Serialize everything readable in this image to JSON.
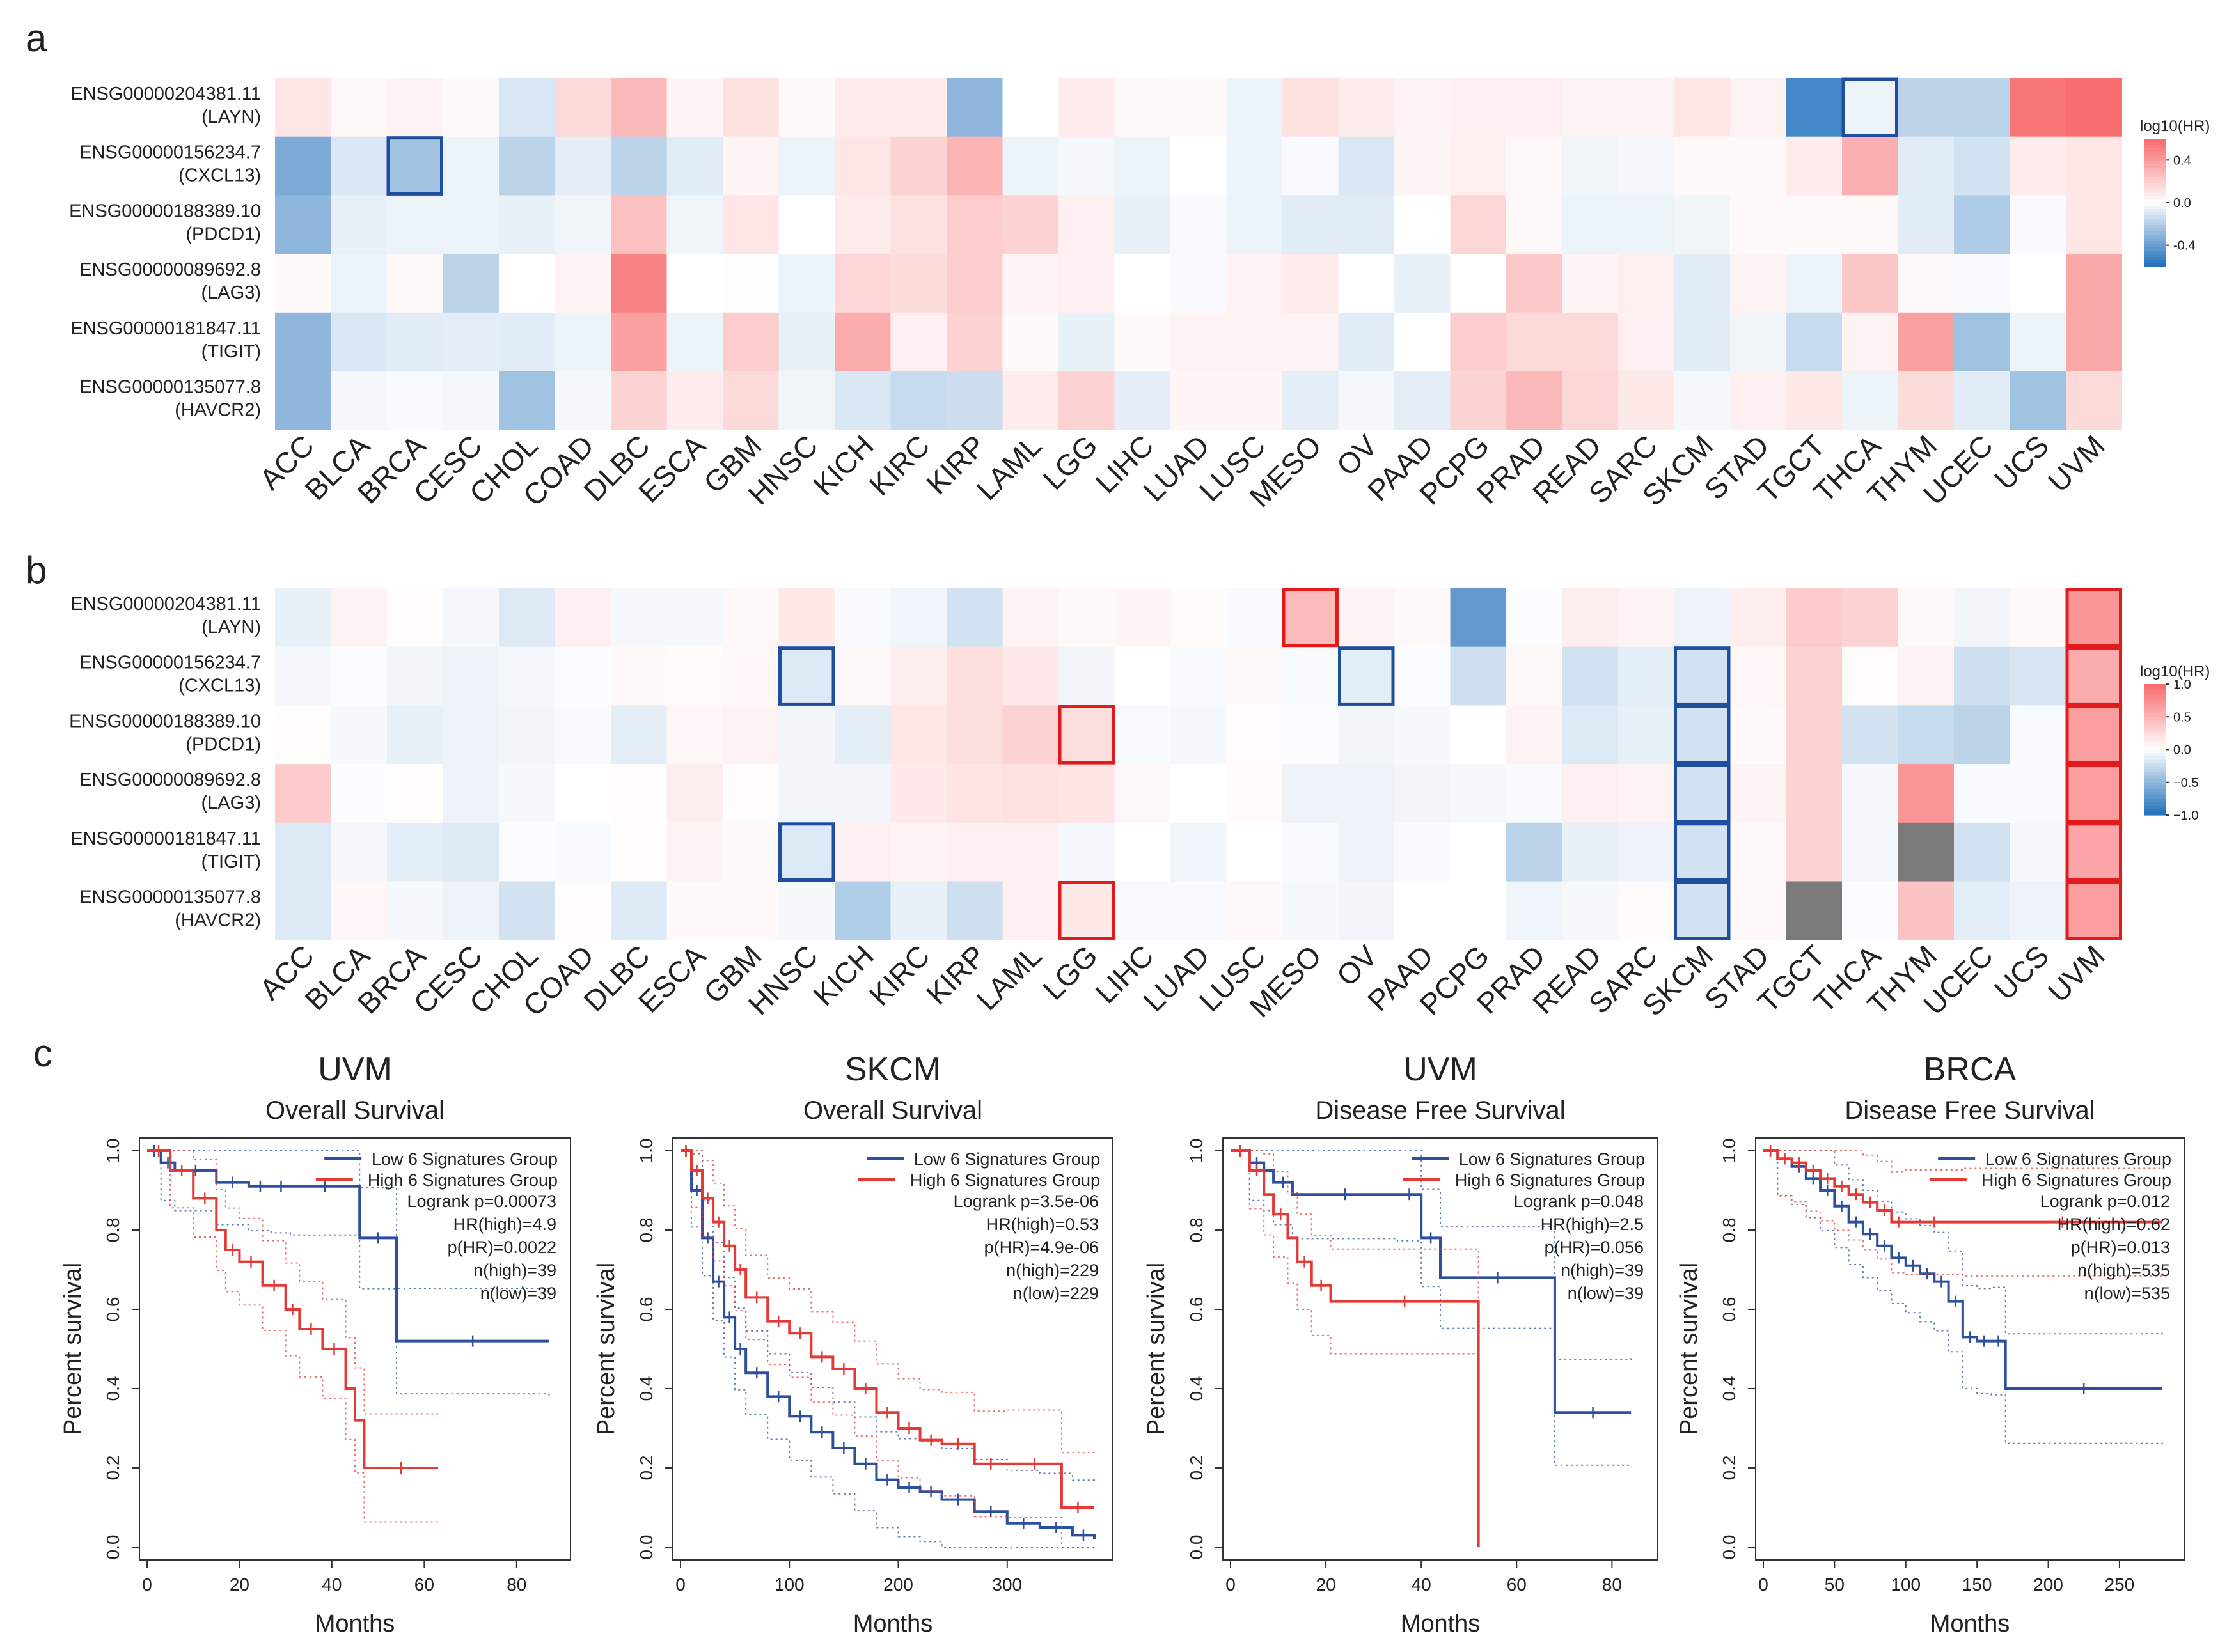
{
  "panels": {
    "a": {
      "label": "a"
    },
    "b": {
      "label": "b"
    },
    "c": {
      "label": "c"
    }
  },
  "cancers": [
    "ACC",
    "BLCA",
    "BRCA",
    "CESC",
    "CHOL",
    "COAD",
    "DLBC",
    "ESCA",
    "GBM",
    "HNSC",
    "KICH",
    "KIRC",
    "KIRP",
    "LAML",
    "LGG",
    "LIHC",
    "LUAD",
    "LUSC",
    "MESO",
    "OV",
    "PAAD",
    "PCPG",
    "PRAD",
    "READ",
    "SARC",
    "SKCM",
    "STAD",
    "TGCT",
    "THCA",
    "THYM",
    "UCEC",
    "UCS",
    "UVM"
  ],
  "genes": [
    {
      "id": "ENSG00000204381.11",
      "symbol": "(LAYN)"
    },
    {
      "id": "ENSG00000156234.7",
      "symbol": "(CXCL13)"
    },
    {
      "id": "ENSG00000188389.10",
      "symbol": "(PDCD1)"
    },
    {
      "id": "ENSG00000089692.8",
      "symbol": "(LAG3)"
    },
    {
      "id": "ENSG00000181847.11",
      "symbol": "(TIGIT)"
    },
    {
      "id": "ENSG00000135077.8",
      "symbol": "(HAVCR2)"
    }
  ],
  "colors": {
    "high": "#f8696b",
    "mid": "#ffffff",
    "low": "#1e6fba",
    "missing": "#7a7a7a",
    "sig_red": "#e31a1c",
    "sig_blue": "#1f4e9f",
    "km_low": "#2c4f9e",
    "km_high": "#e53935"
  },
  "chart_data": [
    {
      "type": "heatmap",
      "name": "a",
      "legend": {
        "title": "log10(HR)",
        "ticks": [
          "0.4",
          "0.0",
          "-0.4"
        ],
        "tick_values": [
          0.4,
          0.0,
          -0.4
        ],
        "range": [
          -0.6,
          0.6
        ]
      },
      "values": [
        [
          0.1,
          0.03,
          0.05,
          0.02,
          -0.1,
          0.15,
          0.28,
          0.04,
          0.12,
          0.03,
          0.08,
          0.08,
          -0.3,
          0.0,
          0.08,
          0.03,
          0.02,
          -0.05,
          0.12,
          0.08,
          0.05,
          0.06,
          0.06,
          0.05,
          0.05,
          0.1,
          0.05,
          -0.5,
          -0.05,
          -0.18,
          -0.18,
          0.55
        ],
        [
          -0.35,
          -0.1,
          -0.25,
          -0.05,
          -0.18,
          -0.07,
          -0.18,
          -0.08,
          0.04,
          -0.05,
          0.1,
          0.18,
          0.3,
          -0.05,
          -0.03,
          -0.05,
          0.0,
          -0.05,
          -0.02,
          -0.1,
          0.04,
          0.07,
          0.03,
          -0.04,
          -0.03,
          0.03,
          0.03,
          0.08,
          0.32,
          -0.08,
          -0.12,
          0.08
        ],
        [
          -0.3,
          -0.06,
          -0.05,
          -0.05,
          -0.06,
          -0.04,
          0.25,
          -0.04,
          0.1,
          0.0,
          0.08,
          0.12,
          0.2,
          0.18,
          0.06,
          -0.06,
          -0.02,
          -0.05,
          -0.08,
          -0.08,
          0.0,
          0.16,
          0.03,
          -0.05,
          -0.05,
          -0.04,
          0.03,
          0.02,
          0.03,
          -0.08,
          -0.22,
          -0.02
        ],
        [
          0.02,
          -0.05,
          0.03,
          -0.18,
          0.0,
          0.05,
          0.5,
          0.0,
          -0.01,
          -0.05,
          0.16,
          0.14,
          0.2,
          0.05,
          0.06,
          0.0,
          -0.02,
          0.05,
          0.08,
          0.0,
          -0.06,
          0.0,
          0.22,
          0.04,
          0.07,
          -0.08,
          0.05,
          -0.05,
          0.23,
          0.03,
          -0.02,
          0.0
        ],
        [
          -0.3,
          -0.1,
          -0.08,
          -0.07,
          -0.08,
          -0.05,
          0.38,
          -0.05,
          0.2,
          -0.06,
          0.33,
          0.06,
          0.18,
          0.03,
          -0.06,
          0.02,
          0.05,
          0.05,
          0.05,
          -0.08,
          0.0,
          0.2,
          0.15,
          0.15,
          0.06,
          -0.08,
          -0.04,
          -0.15,
          0.05,
          0.38,
          -0.25,
          -0.05
        ],
        [
          -0.3,
          -0.03,
          -0.02,
          -0.03,
          -0.25,
          -0.03,
          0.18,
          0.08,
          0.15,
          -0.04,
          -0.1,
          -0.15,
          -0.14,
          0.08,
          0.18,
          -0.07,
          0.04,
          0.04,
          -0.07,
          -0.03,
          -0.07,
          0.18,
          0.28,
          0.16,
          0.09,
          -0.03,
          0.06,
          0.09,
          -0.05,
          0.14,
          -0.08,
          -0.25
        ]
      ],
      "uvm_values": [
        0.58,
        0.1,
        0.1,
        0.35,
        0.35,
        0.15
      ],
      "significant": [
        {
          "row": 0,
          "col": 28,
          "dir": "low"
        },
        {
          "row": 1,
          "col": 2,
          "dir": "low"
        }
      ]
    },
    {
      "type": "heatmap",
      "name": "b",
      "legend": {
        "title": "log10(HR)",
        "ticks": [
          "1.0",
          "0.5",
          "0.0",
          "−0.5",
          "−1.0"
        ],
        "tick_values": [
          1.0,
          0.5,
          0.0,
          -0.5,
          -1.0
        ],
        "range": [
          -1.0,
          1.0
        ]
      },
      "values": [
        [
          -0.1,
          0.08,
          0.02,
          -0.05,
          -0.15,
          0.1,
          -0.04,
          -0.04,
          0.05,
          0.15,
          -0.03,
          -0.07,
          -0.2,
          0.08,
          0.05,
          0.07,
          0.03,
          -0.03,
          0.45,
          0.08,
          0.05,
          -0.7,
          -0.02,
          0.12,
          0.08,
          -0.08,
          0.12,
          0.35,
          0.3,
          0.05,
          -0.06,
          0.05,
          0.7
        ],
        [
          -0.05,
          -0.02,
          -0.06,
          -0.08,
          -0.05,
          -0.02,
          0.05,
          0.03,
          0.06,
          -0.15,
          0.05,
          0.12,
          0.22,
          0.14,
          -0.06,
          0.0,
          -0.03,
          0.04,
          -0.03,
          -0.12,
          -0.02,
          -0.22,
          0.05,
          -0.2,
          -0.12,
          -0.2,
          0.06,
          0.3,
          0.02,
          0.08,
          -0.22,
          -0.18,
          0.55
        ],
        [
          0.02,
          -0.04,
          -0.1,
          -0.08,
          -0.06,
          -0.03,
          -0.12,
          0.06,
          0.08,
          -0.06,
          -0.12,
          0.16,
          0.22,
          0.3,
          0.22,
          -0.03,
          -0.04,
          0.02,
          -0.02,
          -0.06,
          -0.04,
          0.0,
          0.08,
          -0.15,
          -0.1,
          -0.2,
          0.04,
          0.3,
          -0.2,
          -0.25,
          -0.3,
          -0.03,
          0.65
        ],
        [
          0.35,
          -0.02,
          0.02,
          -0.08,
          -0.04,
          0.0,
          0.02,
          0.12,
          0.02,
          -0.06,
          -0.06,
          0.14,
          0.18,
          0.2,
          0.18,
          0.05,
          0.0,
          0.03,
          -0.08,
          -0.08,
          -0.06,
          -0.04,
          -0.03,
          0.1,
          0.08,
          -0.2,
          0.08,
          0.3,
          -0.05,
          0.7,
          -0.03,
          -0.03,
          0.65
        ],
        [
          -0.15,
          -0.05,
          -0.12,
          -0.15,
          -0.02,
          -0.03,
          0.02,
          0.08,
          0.05,
          -0.15,
          0.1,
          0.08,
          0.1,
          0.1,
          -0.05,
          0.0,
          -0.07,
          0.0,
          -0.03,
          -0.08,
          -0.03,
          0.0,
          -0.3,
          -0.1,
          -0.08,
          -0.2,
          0.05,
          0.3,
          -0.05,
          null,
          -0.2,
          -0.05,
          0.6
        ],
        [
          -0.15,
          0.06,
          -0.04,
          -0.08,
          -0.2,
          0.02,
          -0.15,
          0.04,
          0.04,
          -0.04,
          -0.35,
          -0.1,
          -0.22,
          0.1,
          0.15,
          -0.03,
          -0.03,
          0.05,
          -0.04,
          -0.06,
          0.0,
          0.0,
          -0.07,
          -0.04,
          0.03,
          -0.2,
          0.05,
          null,
          -0.02,
          0.4,
          -0.12,
          -0.08,
          0.65
        ]
      ],
      "significant": [
        {
          "row": 0,
          "col": 18,
          "dir": "high"
        },
        {
          "row": 0,
          "col": 32,
          "dir": "high"
        },
        {
          "row": 1,
          "col": 9,
          "dir": "low"
        },
        {
          "row": 1,
          "col": 19,
          "dir": "low"
        },
        {
          "row": 1,
          "col": 25,
          "dir": "low"
        },
        {
          "row": 1,
          "col": 32,
          "dir": "high"
        },
        {
          "row": 2,
          "col": 14,
          "dir": "high"
        },
        {
          "row": 2,
          "col": 25,
          "dir": "low"
        },
        {
          "row": 2,
          "col": 32,
          "dir": "high"
        },
        {
          "row": 3,
          "col": 25,
          "dir": "low"
        },
        {
          "row": 3,
          "col": 32,
          "dir": "high"
        },
        {
          "row": 4,
          "col": 9,
          "dir": "low"
        },
        {
          "row": 4,
          "col": 25,
          "dir": "low"
        },
        {
          "row": 4,
          "col": 32,
          "dir": "high"
        },
        {
          "row": 5,
          "col": 14,
          "dir": "high"
        },
        {
          "row": 5,
          "col": 25,
          "dir": "low"
        },
        {
          "row": 5,
          "col": 32,
          "dir": "high"
        }
      ]
    },
    {
      "type": "line",
      "name": "km-uvm-os",
      "title": "UVM",
      "subtitle": "Overall Survival",
      "xlabel": "Months",
      "ylabel": "Percent survival",
      "xlim": [
        0,
        90
      ],
      "xticks": [
        0,
        20,
        40,
        60,
        80
      ],
      "ylim": [
        0,
        1
      ],
      "yticks": [
        "0.0",
        "0.2",
        "0.4",
        "0.6",
        "0.8",
        "1.0"
      ],
      "legend": [
        "Low 6 Signatures Group",
        "High 6 Signatures Group"
      ],
      "stats": [
        "Logrank p=0.00073",
        "HR(high)=4.9",
        "p(HR)=0.0022",
        "n(high)=39",
        "n(low)=39"
      ],
      "series": [
        {
          "name": "Low 6 Signatures Group",
          "x": [
            0,
            3,
            6,
            15,
            22,
            27,
            31,
            46,
            54,
            87
          ],
          "y": [
            1.0,
            0.97,
            0.95,
            0.92,
            0.91,
            0.91,
            0.91,
            0.78,
            0.52,
            0.52
          ]
        },
        {
          "name": "High 6 Signatures Group",
          "x": [
            0,
            5,
            10,
            15,
            17,
            20,
            25,
            30,
            33,
            38,
            43,
            45,
            47,
            63
          ],
          "y": [
            1.0,
            0.95,
            0.88,
            0.8,
            0.75,
            0.72,
            0.66,
            0.6,
            0.55,
            0.5,
            0.4,
            0.32,
            0.2,
            0.2
          ]
        }
      ]
    },
    {
      "type": "line",
      "name": "km-skcm-os",
      "title": "SKCM",
      "subtitle": "Overall Survival",
      "xlabel": "Months",
      "ylabel": "Percent survival",
      "xlim": [
        0,
        390
      ],
      "xticks": [
        0,
        100,
        200,
        300
      ],
      "ylim": [
        0,
        1
      ],
      "yticks": [
        "0.0",
        "0.2",
        "0.4",
        "0.6",
        "0.8",
        "1.0"
      ],
      "legend": [
        "Low 6 Signatures Group",
        "High 6 Signatures Group"
      ],
      "stats": [
        "Logrank p=3.5e-06",
        "HR(high)=0.53",
        "p(HR)=4.9e-06",
        "n(high)=229",
        "n(low)=229"
      ],
      "series": [
        {
          "name": "Low 6 Signatures Group",
          "x": [
            0,
            10,
            20,
            30,
            40,
            50,
            60,
            80,
            100,
            120,
            140,
            160,
            180,
            200,
            220,
            240,
            270,
            300,
            330,
            360,
            380
          ],
          "y": [
            1.0,
            0.9,
            0.78,
            0.67,
            0.58,
            0.5,
            0.44,
            0.38,
            0.33,
            0.29,
            0.25,
            0.21,
            0.17,
            0.15,
            0.14,
            0.12,
            0.09,
            0.06,
            0.05,
            0.03,
            0.02
          ]
        },
        {
          "name": "High 6 Signatures Group",
          "x": [
            0,
            10,
            20,
            30,
            40,
            50,
            60,
            80,
            100,
            120,
            140,
            160,
            180,
            200,
            220,
            240,
            270,
            300,
            350,
            380
          ],
          "y": [
            1.0,
            0.95,
            0.88,
            0.82,
            0.76,
            0.7,
            0.63,
            0.57,
            0.54,
            0.48,
            0.45,
            0.4,
            0.34,
            0.3,
            0.27,
            0.26,
            0.21,
            0.21,
            0.1,
            0.1
          ]
        }
      ]
    },
    {
      "type": "line",
      "name": "km-uvm-dfs",
      "title": "UVM",
      "subtitle": "Disease Free Survival",
      "xlabel": "Months",
      "ylabel": "Percent survival",
      "xlim": [
        0,
        88
      ],
      "xticks": [
        0,
        20,
        40,
        60,
        80
      ],
      "ylim": [
        0,
        1
      ],
      "yticks": [
        "0.0",
        "0.2",
        "0.4",
        "0.6",
        "0.8",
        "1.0"
      ],
      "legend": [
        "Low 6 Signatures Group",
        "High 6 Signatures Group"
      ],
      "stats": [
        "Logrank p=0.048",
        "HR(high)=2.5",
        "p(HR)=0.056",
        "n(high)=39",
        "n(low)=39"
      ],
      "series": [
        {
          "name": "Low 6 Signatures Group",
          "x": [
            0,
            4,
            7,
            9,
            13,
            35,
            40,
            44,
            68,
            84
          ],
          "y": [
            1.0,
            0.97,
            0.95,
            0.92,
            0.89,
            0.89,
            0.78,
            0.68,
            0.34,
            0.34
          ]
        },
        {
          "name": "High 6 Signatures Group",
          "x": [
            0,
            4,
            7,
            9,
            12,
            14,
            17,
            21,
            52
          ],
          "y": [
            1.0,
            0.95,
            0.89,
            0.84,
            0.78,
            0.72,
            0.66,
            0.62,
            0.0
          ]
        }
      ]
    },
    {
      "type": "line",
      "name": "km-brca-dfs",
      "title": "BRCA",
      "subtitle": "Disease Free Survival",
      "xlabel": "Months",
      "ylabel": "Percent survival",
      "xlim": [
        0,
        290
      ],
      "xticks": [
        0,
        50,
        100,
        150,
        200,
        250
      ],
      "ylim": [
        0,
        1
      ],
      "yticks": [
        "0.0",
        "0.2",
        "0.4",
        "0.6",
        "0.8",
        "1.0"
      ],
      "legend": [
        "Low 6 Signatures Group",
        "High 6 Signatures Group"
      ],
      "stats": [
        "Logrank p=0.012",
        "HR(high)=0.62",
        "p(HR)=0.013",
        "n(high)=535",
        "n(low)=535"
      ],
      "series": [
        {
          "name": "Low 6 Signatures Group",
          "x": [
            0,
            10,
            20,
            30,
            40,
            50,
            60,
            70,
            80,
            90,
            100,
            110,
            120,
            130,
            140,
            150,
            160,
            170,
            280
          ],
          "y": [
            1.0,
            0.98,
            0.96,
            0.93,
            0.9,
            0.86,
            0.82,
            0.79,
            0.76,
            0.73,
            0.71,
            0.69,
            0.67,
            0.62,
            0.53,
            0.52,
            0.52,
            0.4,
            0.4
          ]
        },
        {
          "name": "High 6 Signatures Group",
          "x": [
            0,
            10,
            20,
            30,
            40,
            50,
            60,
            70,
            80,
            90,
            100,
            140,
            280
          ],
          "y": [
            1.0,
            0.98,
            0.97,
            0.95,
            0.93,
            0.91,
            0.89,
            0.87,
            0.85,
            0.82,
            0.82,
            0.82,
            0.82
          ]
        }
      ]
    }
  ]
}
